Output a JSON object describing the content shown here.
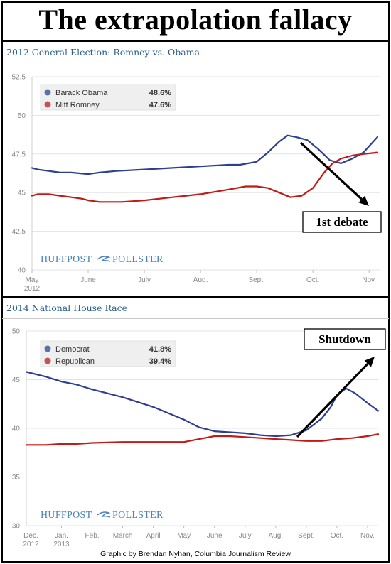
{
  "title": "The extrapolation fallacy",
  "credit": "Graphic by Brendan Nyhan, Columbia Journalism Review",
  "brand": {
    "left": "HUFFPOST",
    "right": "POLLSTER"
  },
  "colors": {
    "blue": "#2e3f8f",
    "red": "#c11b17",
    "legend_blue": "#5b6fa8",
    "legend_red": "#c8505a",
    "title_blue": "#2a5f8f"
  },
  "chart_data": [
    {
      "type": "line",
      "title": "2012 General Election: Romney vs. Obama",
      "ylim": [
        40,
        52.5
      ],
      "yticks": [
        40,
        42.5,
        45,
        47.5,
        50,
        52.5
      ],
      "ytick_labels": [
        "40",
        "42.5",
        "45",
        "47.5",
        "50",
        "52.5"
      ],
      "xlim": [
        0,
        6.2
      ],
      "xticks": [
        {
          "x": 0,
          "l1": "May",
          "l2": "2012"
        },
        {
          "x": 1,
          "l1": "June",
          "l2": ""
        },
        {
          "x": 2,
          "l1": "July",
          "l2": ""
        },
        {
          "x": 3,
          "l1": "Aug.",
          "l2": ""
        },
        {
          "x": 4,
          "l1": "Sept.",
          "l2": ""
        },
        {
          "x": 5,
          "l1": "Oct.",
          "l2": ""
        },
        {
          "x": 6,
          "l1": "Nov.",
          "l2": ""
        }
      ],
      "series": [
        {
          "name": "Barack Obama",
          "label_value": "48.6%",
          "x": [
            0,
            0.1,
            0.3,
            0.5,
            0.7,
            1.0,
            1.2,
            1.5,
            2.0,
            2.5,
            3.0,
            3.5,
            3.7,
            4.0,
            4.2,
            4.4,
            4.55,
            4.7,
            4.9,
            5.1,
            5.3,
            5.5,
            5.7,
            5.9,
            6.0,
            6.15
          ],
          "values": [
            46.6,
            46.5,
            46.4,
            46.3,
            46.3,
            46.2,
            46.3,
            46.4,
            46.5,
            46.6,
            46.7,
            46.8,
            46.8,
            47.0,
            47.6,
            48.3,
            48.7,
            48.6,
            48.4,
            47.8,
            47.1,
            46.9,
            47.2,
            47.6,
            48.0,
            48.6
          ]
        },
        {
          "name": "Mitt Romney",
          "label_value": "47.6%",
          "x": [
            0,
            0.1,
            0.3,
            0.5,
            0.7,
            0.9,
            1.0,
            1.2,
            1.6,
            2.0,
            2.5,
            3.0,
            3.5,
            3.8,
            4.0,
            4.2,
            4.4,
            4.6,
            4.8,
            5.0,
            5.2,
            5.35,
            5.5,
            5.7,
            5.9,
            6.15
          ],
          "values": [
            44.8,
            44.9,
            44.9,
            44.8,
            44.7,
            44.6,
            44.5,
            44.4,
            44.4,
            44.5,
            44.7,
            44.9,
            45.2,
            45.4,
            45.4,
            45.3,
            45.0,
            44.7,
            44.8,
            45.3,
            46.3,
            46.9,
            47.2,
            47.4,
            47.5,
            47.6
          ]
        }
      ],
      "annotation": "1st debate"
    },
    {
      "type": "line",
      "title": "2014 National House Race",
      "ylim": [
        30,
        50
      ],
      "yticks": [
        30,
        35,
        40,
        45,
        50
      ],
      "ytick_labels": [
        "30",
        "35",
        "40",
        "45",
        "50"
      ],
      "xlim": [
        -0.15,
        11.35
      ],
      "xticks": [
        {
          "x": 0,
          "l1": "Dec.",
          "l2": "2012"
        },
        {
          "x": 1,
          "l1": "Jan.",
          "l2": "2013"
        },
        {
          "x": 2,
          "l1": "Feb.",
          "l2": ""
        },
        {
          "x": 3,
          "l1": "March",
          "l2": ""
        },
        {
          "x": 4,
          "l1": "April",
          "l2": ""
        },
        {
          "x": 5,
          "l1": "May",
          "l2": ""
        },
        {
          "x": 6,
          "l1": "June",
          "l2": ""
        },
        {
          "x": 7,
          "l1": "July",
          "l2": ""
        },
        {
          "x": 8,
          "l1": "Aug.",
          "l2": ""
        },
        {
          "x": 9,
          "l1": "Sept.",
          "l2": ""
        },
        {
          "x": 10,
          "l1": "Oct.",
          "l2": ""
        },
        {
          "x": 11,
          "l1": "Nov.",
          "l2": ""
        }
      ],
      "series": [
        {
          "name": "Democrat",
          "label_value": "41.8%",
          "x": [
            -0.15,
            0.5,
            1.0,
            1.5,
            2.0,
            3.0,
            4.0,
            5.0,
            5.5,
            6.0,
            6.5,
            7.0,
            7.5,
            8.0,
            8.5,
            9.0,
            9.5,
            9.8,
            10.0,
            10.3,
            10.6,
            11.0,
            11.35
          ],
          "values": [
            45.8,
            45.3,
            44.8,
            44.5,
            44.0,
            43.2,
            42.2,
            40.9,
            40.1,
            39.7,
            39.6,
            39.5,
            39.3,
            39.2,
            39.3,
            39.8,
            41.0,
            42.2,
            43.4,
            44.1,
            43.6,
            42.6,
            41.8
          ]
        },
        {
          "name": "Republican",
          "label_value": "39.4%",
          "x": [
            -0.15,
            0.5,
            1.0,
            1.5,
            2.0,
            3.0,
            4.0,
            4.5,
            5.0,
            5.5,
            6.0,
            6.5,
            7.0,
            7.5,
            8.0,
            8.5,
            9.0,
            9.5,
            10.0,
            10.5,
            11.0,
            11.35
          ],
          "values": [
            38.3,
            38.3,
            38.4,
            38.4,
            38.5,
            38.6,
            38.6,
            38.6,
            38.6,
            38.9,
            39.2,
            39.2,
            39.1,
            39.0,
            38.9,
            38.8,
            38.7,
            38.7,
            38.9,
            39.0,
            39.2,
            39.4
          ]
        }
      ],
      "annotation": "Shutdown"
    }
  ]
}
